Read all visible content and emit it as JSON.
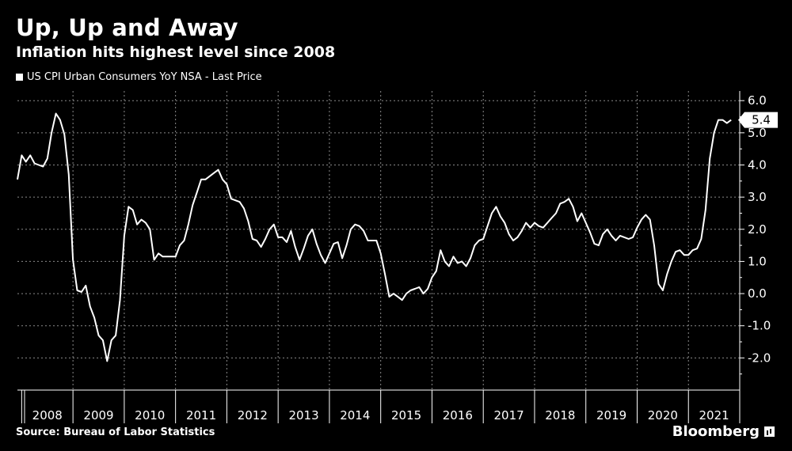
{
  "title": "Up, Up and Away",
  "subtitle": "Inflation hits highest level since 2008",
  "source": "Source: Bureau of Labor Statistics",
  "brand": "Bloomberg",
  "last_value_label": "5.4",
  "chart_data": {
    "type": "line",
    "title": "Up, Up and Away",
    "subtitle": "Inflation hits highest level since 2008",
    "series": [
      {
        "name": "US CPI Urban Consumers YoY NSA - Last Price",
        "color": "#ffffff",
        "points": [
          [
            2007.917,
            3.55
          ],
          [
            2008.0,
            4.3
          ],
          [
            2008.083,
            4.1
          ],
          [
            2008.167,
            4.3
          ],
          [
            2008.25,
            4.05
          ],
          [
            2008.333,
            4.0
          ],
          [
            2008.417,
            3.95
          ],
          [
            2008.5,
            4.2
          ],
          [
            2008.583,
            5.0
          ],
          [
            2008.667,
            5.6
          ],
          [
            2008.75,
            5.4
          ],
          [
            2008.833,
            4.95
          ],
          [
            2008.917,
            3.7
          ],
          [
            2009.0,
            1.05
          ],
          [
            2009.083,
            0.1
          ],
          [
            2009.167,
            0.05
          ],
          [
            2009.25,
            0.25
          ],
          [
            2009.333,
            -0.4
          ],
          [
            2009.417,
            -0.75
          ],
          [
            2009.5,
            -1.3
          ],
          [
            2009.583,
            -1.45
          ],
          [
            2009.667,
            -2.1
          ],
          [
            2009.75,
            -1.45
          ],
          [
            2009.833,
            -1.3
          ],
          [
            2009.917,
            -0.2
          ],
          [
            2010.0,
            1.8
          ],
          [
            2010.083,
            2.7
          ],
          [
            2010.167,
            2.6
          ],
          [
            2010.25,
            2.15
          ],
          [
            2010.333,
            2.3
          ],
          [
            2010.417,
            2.2
          ],
          [
            2010.5,
            2.0
          ],
          [
            2010.583,
            1.05
          ],
          [
            2010.667,
            1.25
          ],
          [
            2010.75,
            1.15
          ],
          [
            2010.833,
            1.15
          ],
          [
            2010.917,
            1.15
          ],
          [
            2011.0,
            1.15
          ],
          [
            2011.083,
            1.5
          ],
          [
            2011.167,
            1.65
          ],
          [
            2011.25,
            2.15
          ],
          [
            2011.333,
            2.75
          ],
          [
            2011.417,
            3.15
          ],
          [
            2011.5,
            3.55
          ],
          [
            2011.583,
            3.55
          ],
          [
            2011.667,
            3.65
          ],
          [
            2011.75,
            3.75
          ],
          [
            2011.833,
            3.85
          ],
          [
            2011.917,
            3.55
          ],
          [
            2012.0,
            3.4
          ],
          [
            2012.083,
            2.95
          ],
          [
            2012.167,
            2.9
          ],
          [
            2012.25,
            2.85
          ],
          [
            2012.333,
            2.65
          ],
          [
            2012.417,
            2.25
          ],
          [
            2012.5,
            1.7
          ],
          [
            2012.583,
            1.65
          ],
          [
            2012.667,
            1.45
          ],
          [
            2012.75,
            1.7
          ],
          [
            2012.833,
            2.0
          ],
          [
            2012.917,
            2.15
          ],
          [
            2013.0,
            1.75
          ],
          [
            2013.083,
            1.75
          ],
          [
            2013.167,
            1.6
          ],
          [
            2013.25,
            1.95
          ],
          [
            2013.333,
            1.45
          ],
          [
            2013.417,
            1.05
          ],
          [
            2013.5,
            1.4
          ],
          [
            2013.583,
            1.8
          ],
          [
            2013.667,
            2.0
          ],
          [
            2013.75,
            1.55
          ],
          [
            2013.833,
            1.2
          ],
          [
            2013.917,
            0.95
          ],
          [
            2014.0,
            1.25
          ],
          [
            2014.083,
            1.55
          ],
          [
            2014.167,
            1.6
          ],
          [
            2014.25,
            1.1
          ],
          [
            2014.333,
            1.5
          ],
          [
            2014.417,
            2.0
          ],
          [
            2014.5,
            2.15
          ],
          [
            2014.583,
            2.1
          ],
          [
            2014.667,
            1.95
          ],
          [
            2014.75,
            1.65
          ],
          [
            2014.833,
            1.65
          ],
          [
            2014.917,
            1.65
          ],
          [
            2015.0,
            1.25
          ],
          [
            2015.083,
            0.6
          ],
          [
            2015.167,
            -0.1
          ],
          [
            2015.25,
            0.0
          ],
          [
            2015.333,
            -0.1
          ],
          [
            2015.417,
            -0.2
          ],
          [
            2015.5,
            0.0
          ],
          [
            2015.583,
            0.1
          ],
          [
            2015.667,
            0.15
          ],
          [
            2015.75,
            0.2
          ],
          [
            2015.833,
            0.0
          ],
          [
            2015.917,
            0.15
          ],
          [
            2016.0,
            0.5
          ],
          [
            2016.083,
            0.7
          ],
          [
            2016.167,
            1.35
          ],
          [
            2016.25,
            1.0
          ],
          [
            2016.333,
            0.85
          ],
          [
            2016.417,
            1.15
          ],
          [
            2016.5,
            0.95
          ],
          [
            2016.583,
            1.0
          ],
          [
            2016.667,
            0.85
          ],
          [
            2016.75,
            1.1
          ],
          [
            2016.833,
            1.5
          ],
          [
            2016.917,
            1.65
          ],
          [
            2017.0,
            1.7
          ],
          [
            2017.083,
            2.1
          ],
          [
            2017.167,
            2.5
          ],
          [
            2017.25,
            2.7
          ],
          [
            2017.333,
            2.4
          ],
          [
            2017.417,
            2.2
          ],
          [
            2017.5,
            1.85
          ],
          [
            2017.583,
            1.65
          ],
          [
            2017.667,
            1.75
          ],
          [
            2017.75,
            1.95
          ],
          [
            2017.833,
            2.2
          ],
          [
            2017.917,
            2.05
          ],
          [
            2018.0,
            2.2
          ],
          [
            2018.083,
            2.1
          ],
          [
            2018.167,
            2.05
          ],
          [
            2018.25,
            2.2
          ],
          [
            2018.333,
            2.35
          ],
          [
            2018.417,
            2.5
          ],
          [
            2018.5,
            2.8
          ],
          [
            2018.583,
            2.85
          ],
          [
            2018.667,
            2.95
          ],
          [
            2018.75,
            2.7
          ],
          [
            2018.833,
            2.25
          ],
          [
            2018.917,
            2.5
          ],
          [
            2019.0,
            2.2
          ],
          [
            2019.083,
            1.9
          ],
          [
            2019.167,
            1.55
          ],
          [
            2019.25,
            1.5
          ],
          [
            2019.333,
            1.85
          ],
          [
            2019.417,
            2.0
          ],
          [
            2019.5,
            1.8
          ],
          [
            2019.583,
            1.65
          ],
          [
            2019.667,
            1.8
          ],
          [
            2019.75,
            1.75
          ],
          [
            2019.833,
            1.7
          ],
          [
            2019.917,
            1.75
          ],
          [
            2020.0,
            2.05
          ],
          [
            2020.083,
            2.3
          ],
          [
            2020.167,
            2.45
          ],
          [
            2020.25,
            2.3
          ],
          [
            2020.333,
            1.5
          ],
          [
            2020.417,
            0.3
          ],
          [
            2020.5,
            0.1
          ],
          [
            2020.583,
            0.6
          ],
          [
            2020.667,
            1.0
          ],
          [
            2020.75,
            1.3
          ],
          [
            2020.833,
            1.35
          ],
          [
            2020.917,
            1.2
          ],
          [
            2021.0,
            1.2
          ],
          [
            2021.083,
            1.35
          ],
          [
            2021.167,
            1.4
          ],
          [
            2021.25,
            1.7
          ],
          [
            2021.333,
            2.6
          ],
          [
            2021.417,
            4.2
          ],
          [
            2021.5,
            5.0
          ],
          [
            2021.583,
            5.4
          ],
          [
            2021.667,
            5.4
          ],
          [
            2021.75,
            5.3
          ],
          [
            2021.833,
            5.4
          ]
        ]
      }
    ],
    "x_ticks": [
      "2008",
      "2009",
      "2010",
      "2011",
      "2012",
      "2013",
      "2014",
      "2015",
      "2016",
      "2017",
      "2018",
      "2019",
      "2020",
      "2021"
    ],
    "y_ticks": [
      "6.0",
      "5.0",
      "4.0",
      "3.0",
      "2.0",
      "1.0",
      "0.0",
      "-1.0",
      "-2.0"
    ],
    "xlim": [
      2007.917,
      2022.0
    ],
    "ylim": [
      -3.0,
      6.3
    ],
    "grid": "dashed",
    "legend": "top-left"
  }
}
